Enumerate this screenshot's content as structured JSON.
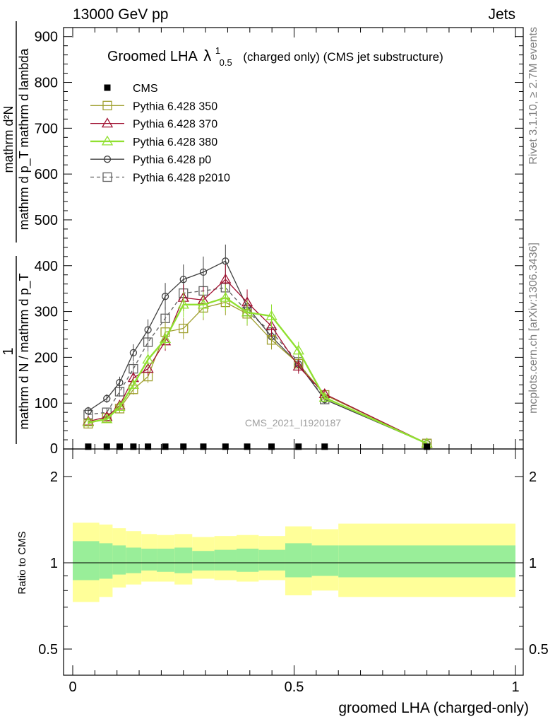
{
  "header": {
    "left": "13000 GeV pp",
    "right": "Jets"
  },
  "plot_title_main": "Groomed LHA",
  "plot_title_lambda": "λ",
  "plot_title_sup": "1",
  "plot_title_sub": "0.5",
  "plot_title_rest": "(charged only) (CMS jet substructure)",
  "watermark": "CMS_2021_I1920187",
  "side_text": {
    "rivet": "Rivet 3.1.10, ≥ 2.7M events",
    "mcplots": "mcplots.cern.ch [arXiv:1306.3436]"
  },
  "ylabel_top": {
    "numerator_1": "1",
    "denominator_1": "mathrm d N / mathrm d p_T",
    "numerator_2": "mathrm d²N",
    "denominator_2": "mathrm d p_T mathrm d lambda"
  },
  "ratio_ylabel": "Ratio to CMS",
  "xlabel": "groomed LHA (charged-only)",
  "colors": {
    "cms": "#000000",
    "p350": "#a0a030",
    "p370": "#a01030",
    "p380": "#90e030",
    "p0": "#404040",
    "p2010": "#606060",
    "band_inner": "#99ee99",
    "band_outer": "#ffff99"
  },
  "chart_data": {
    "type": "line",
    "x": [
      0.035,
      0.077,
      0.106,
      0.137,
      0.17,
      0.209,
      0.25,
      0.295,
      0.345,
      0.394,
      0.449,
      0.51,
      0.569,
      0.8
    ],
    "ylim": [
      0,
      930
    ],
    "xlim": [
      -0.02,
      1.02
    ],
    "yticks": [
      "100",
      "200",
      "300",
      "400",
      "500",
      "600",
      "700",
      "800",
      "900"
    ],
    "xticks": [
      "0",
      "0.5",
      "1"
    ],
    "series": [
      {
        "name": "CMS",
        "key": "cms",
        "marker": "filled-square",
        "values": [
          5,
          5,
          5,
          5,
          5,
          5,
          5,
          5,
          5,
          5,
          5,
          5,
          5,
          5
        ]
      },
      {
        "name": "Pythia 6.428 350",
        "key": "p350",
        "marker": "open-square",
        "values": [
          55,
          68,
          88,
          130,
          158,
          255,
          263,
          308,
          320,
          295,
          238,
          186,
          118,
          12
        ]
      },
      {
        "name": "Pythia 6.428 370",
        "key": "p370",
        "marker": "open-triangle",
        "values": [
          60,
          70,
          95,
          155,
          175,
          235,
          330,
          325,
          370,
          320,
          268,
          180,
          120,
          12
        ]
      },
      {
        "name": "Pythia 6.428 380",
        "key": "p380",
        "marker": "open-triangle",
        "values": [
          58,
          65,
          92,
          140,
          195,
          240,
          315,
          315,
          330,
          298,
          290,
          215,
          112,
          12
        ]
      },
      {
        "name": "Pythia 6.428 p0",
        "key": "p0",
        "marker": "open-circle",
        "values": [
          83,
          110,
          145,
          210,
          260,
          333,
          370,
          386,
          410,
          310,
          245,
          185,
          108,
          12
        ]
      },
      {
        "name": "Pythia 6.428 p2010",
        "key": "p2010",
        "marker": "open-square-dashed",
        "values": [
          75,
          80,
          125,
          175,
          233,
          285,
          340,
          345,
          352,
          300,
          255,
          190,
          108,
          12
        ]
      }
    ],
    "ratio": {
      "ylabel": "Ratio to CMS",
      "ylim": [
        0.4,
        2.4
      ],
      "yticks": [
        "0.5",
        "1",
        "2"
      ],
      "bins": [
        {
          "lo": 0.0,
          "hi": 0.06,
          "inner": [
            0.87,
            1.19
          ],
          "outer": [
            0.73,
            1.38
          ]
        },
        {
          "lo": 0.06,
          "hi": 0.09,
          "inner": [
            0.88,
            1.17
          ],
          "outer": [
            0.76,
            1.36
          ]
        },
        {
          "lo": 0.09,
          "hi": 0.12,
          "inner": [
            0.91,
            1.15
          ],
          "outer": [
            0.82,
            1.32
          ]
        },
        {
          "lo": 0.12,
          "hi": 0.155,
          "inner": [
            0.92,
            1.13
          ],
          "outer": [
            0.84,
            1.29
          ]
        },
        {
          "lo": 0.155,
          "hi": 0.19,
          "inner": [
            0.94,
            1.12
          ],
          "outer": [
            0.86,
            1.26
          ]
        },
        {
          "lo": 0.19,
          "hi": 0.23,
          "inner": [
            0.93,
            1.12
          ],
          "outer": [
            0.86,
            1.25
          ]
        },
        {
          "lo": 0.23,
          "hi": 0.27,
          "inner": [
            0.92,
            1.13
          ],
          "outer": [
            0.84,
            1.26
          ]
        },
        {
          "lo": 0.27,
          "hi": 0.32,
          "inner": [
            0.94,
            1.1
          ],
          "outer": [
            0.88,
            1.23
          ]
        },
        {
          "lo": 0.32,
          "hi": 0.37,
          "inner": [
            0.94,
            1.11
          ],
          "outer": [
            0.87,
            1.24
          ]
        },
        {
          "lo": 0.37,
          "hi": 0.42,
          "inner": [
            0.93,
            1.12
          ],
          "outer": [
            0.86,
            1.25
          ]
        },
        {
          "lo": 0.42,
          "hi": 0.48,
          "inner": [
            0.94,
            1.11
          ],
          "outer": [
            0.87,
            1.24
          ]
        },
        {
          "lo": 0.48,
          "hi": 0.54,
          "inner": [
            0.89,
            1.17
          ],
          "outer": [
            0.77,
            1.34
          ]
        },
        {
          "lo": 0.54,
          "hi": 0.6,
          "inner": [
            0.9,
            1.15
          ],
          "outer": [
            0.8,
            1.31
          ]
        },
        {
          "lo": 0.6,
          "hi": 1.0,
          "inner": [
            0.89,
            1.15
          ],
          "outer": [
            0.76,
            1.37
          ]
        }
      ]
    }
  }
}
